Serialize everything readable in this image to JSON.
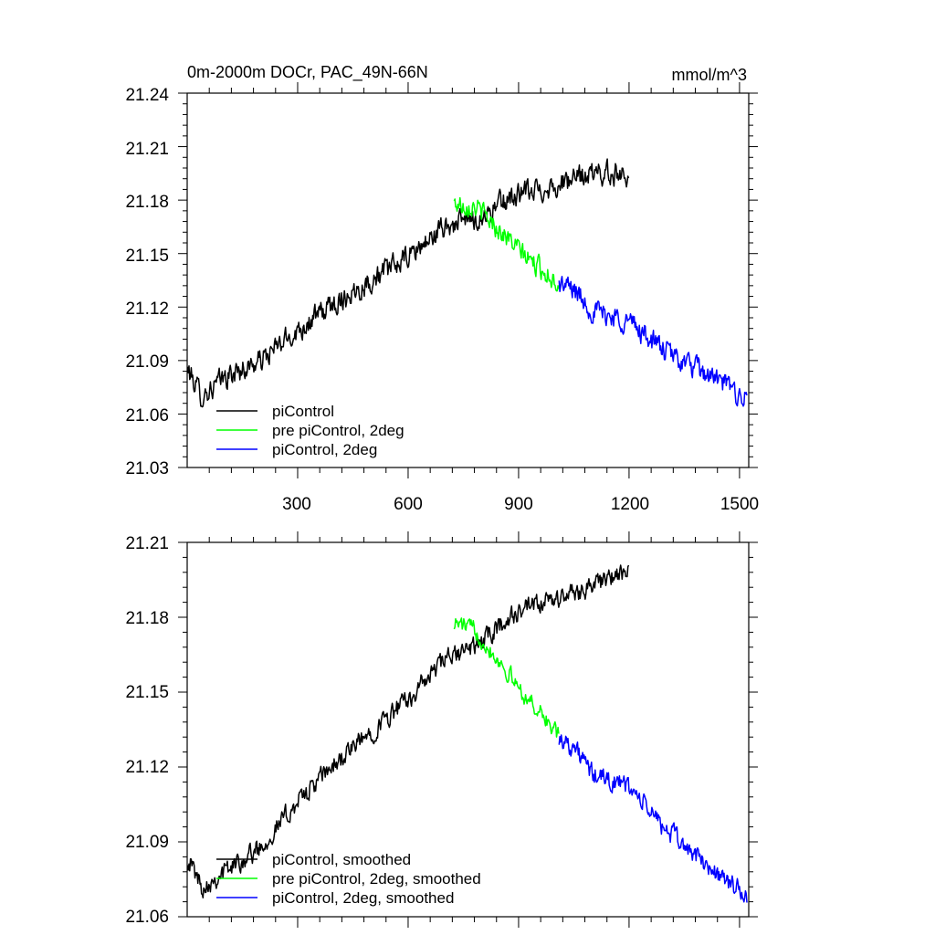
{
  "chart_data": [
    {
      "type": "line",
      "title": "0m-2000m DOCr, PAC_49N-66N",
      "units": "mmol/m^3",
      "xlabel": "",
      "ylabel": "",
      "xlim": [
        0,
        1525
      ],
      "ylim": [
        21.03,
        21.24
      ],
      "xticks": [
        "300",
        "600",
        "900",
        "1200",
        "1500"
      ],
      "yticks": [
        "21.03",
        "21.06",
        "21.09",
        "21.12",
        "21.15",
        "21.18",
        "21.21",
        "21.24"
      ],
      "legend_position": "bottom-left",
      "series": [
        {
          "name": "piControl",
          "color": "#000000",
          "x_start": 1,
          "x_end": 1200,
          "anchors": [
            [
              1,
              21.085
            ],
            [
              40,
              21.07
            ],
            [
              100,
              21.08
            ],
            [
              200,
              21.09
            ],
            [
              300,
              21.107
            ],
            [
              400,
              21.122
            ],
            [
              500,
              21.135
            ],
            [
              600,
              21.148
            ],
            [
              700,
              21.165
            ],
            [
              750,
              21.168
            ],
            [
              800,
              21.17
            ],
            [
              850,
              21.178
            ],
            [
              900,
              21.183
            ],
            [
              1000,
              21.188
            ],
            [
              1100,
              21.195
            ],
            [
              1200,
              21.195
            ]
          ],
          "noise": 0.0055
        },
        {
          "name": "pre piControl, 2deg",
          "color": "#00ff00",
          "x_start": 725,
          "x_end": 1010,
          "anchors": [
            [
              725,
              21.178
            ],
            [
              780,
              21.177
            ],
            [
              850,
              21.163
            ],
            [
              920,
              21.148
            ],
            [
              970,
              21.14
            ],
            [
              1010,
              21.133
            ]
          ],
          "noise": 0.005
        },
        {
          "name": "piControl, 2deg",
          "color": "#0000ff",
          "x_start": 1010,
          "x_end": 1520,
          "anchors": [
            [
              1010,
              21.133
            ],
            [
              1050,
              21.13
            ],
            [
              1100,
              21.118
            ],
            [
              1200,
              21.112
            ],
            [
              1300,
              21.095
            ],
            [
              1400,
              21.083
            ],
            [
              1450,
              21.078
            ],
            [
              1520,
              21.068
            ]
          ],
          "noise": 0.0055
        }
      ]
    },
    {
      "type": "line",
      "title": "",
      "xlabel": "",
      "ylabel": "",
      "xlim": [
        0,
        1525
      ],
      "ylim": [
        21.06,
        21.21
      ],
      "yticks": [
        "21.06",
        "21.09",
        "21.12",
        "21.15",
        "21.18",
        "21.21"
      ],
      "legend_position": "bottom-left",
      "series": [
        {
          "name": "piControl, smoothed",
          "color": "#000000",
          "x_start": 1,
          "x_end": 1200,
          "anchors": [
            [
              1,
              21.084
            ],
            [
              40,
              21.072
            ],
            [
              100,
              21.078
            ],
            [
              200,
              21.088
            ],
            [
              300,
              21.106
            ],
            [
              400,
              21.121
            ],
            [
              500,
              21.134
            ],
            [
              600,
              21.147
            ],
            [
              700,
              21.163
            ],
            [
              750,
              21.166
            ],
            [
              800,
              21.17
            ],
            [
              850,
              21.177
            ],
            [
              900,
              21.182
            ],
            [
              1000,
              21.187
            ],
            [
              1100,
              21.193
            ],
            [
              1200,
              21.198
            ]
          ],
          "noise": 0.0035
        },
        {
          "name": "pre piControl, 2deg, smoothed",
          "color": "#00ff00",
          "x_start": 725,
          "x_end": 1010,
          "anchors": [
            [
              725,
              21.178
            ],
            [
              780,
              21.175
            ],
            [
              850,
              21.162
            ],
            [
              920,
              21.148
            ],
            [
              970,
              21.14
            ],
            [
              1010,
              21.132
            ]
          ],
          "noise": 0.003
        },
        {
          "name": "piControl, 2deg, smoothed",
          "color": "#0000ff",
          "x_start": 1010,
          "x_end": 1520,
          "anchors": [
            [
              1010,
              21.132
            ],
            [
              1050,
              21.128
            ],
            [
              1100,
              21.117
            ],
            [
              1200,
              21.112
            ],
            [
              1300,
              21.095
            ],
            [
              1400,
              21.082
            ],
            [
              1450,
              21.076
            ],
            [
              1520,
              21.068
            ]
          ],
          "noise": 0.0035
        }
      ]
    }
  ]
}
